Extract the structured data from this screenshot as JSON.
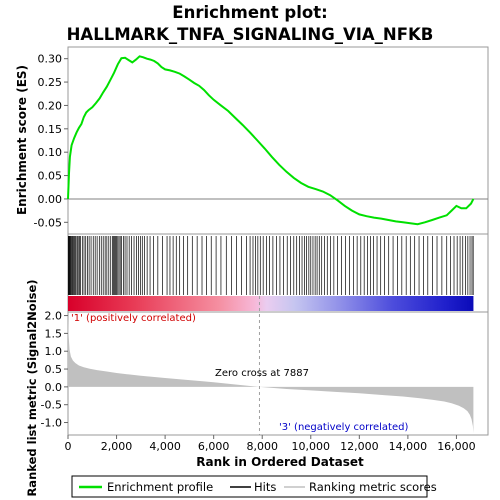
{
  "chart_data": {
    "type": "line",
    "title_lines": [
      "Enrichment plot:",
      "HALLMARK_TNFA_SIGNALING_VIA_NFKB"
    ],
    "xlabel": "Rank in Ordered Dataset",
    "x_ticks": [
      0,
      2000,
      4000,
      6000,
      8000,
      10000,
      12000,
      14000,
      16000
    ],
    "x_tick_labels": [
      "0",
      "2,000",
      "4,000",
      "6,000",
      "8,000",
      "10,000",
      "12,000",
      "14,000",
      "16,000"
    ],
    "xlim": [
      0,
      17300
    ],
    "n_ranks": 16700,
    "es_panel": {
      "ylabel": "Enrichment score (ES)",
      "ylim": [
        -0.075,
        0.325
      ],
      "y_ticks": [
        -0.05,
        0.0,
        0.05,
        0.1,
        0.15,
        0.2,
        0.25,
        0.3
      ],
      "y_tick_labels": [
        "-0.05",
        "0.00",
        "0.05",
        "0.10",
        "0.15",
        "0.20",
        "0.25",
        "0.30"
      ],
      "series": [
        {
          "name": "Enrichment profile",
          "color": "#00e000",
          "x": [
            0,
            40,
            80,
            150,
            250,
            350,
            450,
            550,
            650,
            750,
            850,
            1000,
            1150,
            1300,
            1450,
            1600,
            1750,
            1900,
            2050,
            2200,
            2350,
            2500,
            2650,
            2800,
            2950,
            3100,
            3250,
            3400,
            3550,
            3700,
            3850,
            4000,
            4200,
            4400,
            4600,
            4800,
            5000,
            5200,
            5400,
            5600,
            5800,
            6000,
            6300,
            6600,
            6900,
            7200,
            7500,
            7800,
            8100,
            8400,
            8700,
            9000,
            9300,
            9600,
            9900,
            10200,
            10500,
            10800,
            11100,
            11400,
            11700,
            12000,
            12300,
            12600,
            12900,
            13200,
            13500,
            13800,
            14100,
            14400,
            14700,
            15000,
            15300,
            15600,
            15800,
            16000,
            16200,
            16400,
            16600,
            16700
          ],
          "y": [
            0.0,
            0.055,
            0.09,
            0.115,
            0.13,
            0.142,
            0.152,
            0.16,
            0.175,
            0.185,
            0.19,
            0.196,
            0.205,
            0.215,
            0.228,
            0.24,
            0.255,
            0.27,
            0.288,
            0.301,
            0.302,
            0.297,
            0.292,
            0.298,
            0.305,
            0.303,
            0.3,
            0.298,
            0.295,
            0.29,
            0.282,
            0.277,
            0.275,
            0.272,
            0.268,
            0.262,
            0.255,
            0.248,
            0.242,
            0.233,
            0.222,
            0.212,
            0.2,
            0.188,
            0.173,
            0.158,
            0.142,
            0.125,
            0.108,
            0.09,
            0.073,
            0.058,
            0.045,
            0.034,
            0.026,
            0.021,
            0.016,
            0.008,
            -0.003,
            -0.015,
            -0.025,
            -0.033,
            -0.037,
            -0.04,
            -0.042,
            -0.045,
            -0.048,
            -0.05,
            -0.052,
            -0.054,
            -0.05,
            -0.045,
            -0.04,
            -0.035,
            -0.025,
            -0.015,
            -0.02,
            -0.02,
            -0.01,
            0.0
          ]
        }
      ]
    },
    "hits_panel": {
      "name": "Hits",
      "color": "#000000",
      "hit_positions": [
        18,
        35,
        55,
        80,
        110,
        140,
        175,
        210,
        250,
        290,
        330,
        380,
        420,
        470,
        520,
        590,
        660,
        730,
        800,
        870,
        950,
        1040,
        1120,
        1200,
        1290,
        1370,
        1450,
        1530,
        1600,
        1680,
        1760,
        1830,
        1880,
        1920,
        1960,
        2000,
        2050,
        2100,
        2150,
        2210,
        2280,
        2350,
        2430,
        2520,
        2620,
        2720,
        2820,
        2900,
        2980,
        3060,
        3150,
        3260,
        3380,
        3520,
        3700,
        3890,
        4080,
        4200,
        4330,
        4460,
        4600,
        4760,
        4930,
        5120,
        5320,
        5520,
        5710,
        5900,
        6100,
        6300,
        6520,
        6730,
        6940,
        7150,
        7350,
        7500,
        7620,
        7720,
        7820,
        7920,
        8040,
        8170,
        8300,
        8440,
        8590,
        8730,
        8880,
        9030,
        9170,
        9300,
        9420,
        9530,
        9640,
        9740,
        9830,
        9920,
        10000,
        10090,
        10180,
        10260,
        10350,
        10450,
        10560,
        10680,
        10810,
        10950,
        11100,
        11260,
        11430,
        11600,
        11760,
        11910,
        12060,
        12200,
        12330,
        12460,
        12590,
        12730,
        12880,
        13040,
        13210,
        13390,
        13570,
        13750,
        13930,
        14100,
        14280,
        14460,
        14640,
        14820,
        15010,
        15200,
        15400,
        15600,
        15760,
        15900,
        16030,
        16150,
        16260,
        16370,
        16470,
        16560,
        16640,
        16690
      ]
    },
    "rank_bar": {
      "stops": [
        {
          "frac": 0.0,
          "color": "#d8002a"
        },
        {
          "frac": 0.16,
          "color": "#e83a55"
        },
        {
          "frac": 0.37,
          "color": "#f58ea0"
        },
        {
          "frac": 0.46,
          "color": "#f6b8d8"
        },
        {
          "frac": 0.49,
          "color": "#eacdf0"
        },
        {
          "frac": 0.56,
          "color": "#c5c5f0"
        },
        {
          "frac": 0.68,
          "color": "#8c8ce8"
        },
        {
          "frac": 0.8,
          "color": "#4d4ddc"
        },
        {
          "frac": 0.93,
          "color": "#2020cc"
        },
        {
          "frac": 1.0,
          "color": "#0a0ab8"
        }
      ],
      "label_pos": "'1' (positively correlated)",
      "label_pos_color": "#d00000",
      "label_neg": "'3' (negatively correlated)",
      "label_neg_color": "#0000c8"
    },
    "metric_panel": {
      "ylabel": "Ranked list metric (Signal2Noise)",
      "ylim": [
        -1.35,
        2.1
      ],
      "y_ticks": [
        -1.0,
        -0.5,
        0.0,
        0.5,
        1.0,
        1.5,
        2.0
      ],
      "y_tick_labels": [
        "-1.0",
        "-0.5",
        "0.0",
        "0.5",
        "1.0",
        "1.5",
        "2.0"
      ],
      "fill_color": "#c0c0c0",
      "series": [
        {
          "name": "Ranking metric scores",
          "x": [
            0,
            20,
            60,
            120,
            200,
            300,
            450,
            650,
            900,
            1200,
            1600,
            2000,
            2500,
            3000,
            3500,
            4000,
            5000,
            6000,
            7000,
            7887,
            9000,
            10000,
            11000,
            12000,
            13000,
            13800,
            14500,
            15000,
            15500,
            15800,
            16100,
            16300,
            16450,
            16550,
            16620,
            16680,
            16700
          ],
          "y": [
            2.0,
            1.5,
            1.05,
            0.85,
            0.74,
            0.67,
            0.6,
            0.55,
            0.51,
            0.47,
            0.43,
            0.39,
            0.35,
            0.31,
            0.28,
            0.25,
            0.19,
            0.13,
            0.06,
            0.0,
            -0.06,
            -0.1,
            -0.14,
            -0.18,
            -0.23,
            -0.27,
            -0.32,
            -0.36,
            -0.41,
            -0.46,
            -0.53,
            -0.6,
            -0.68,
            -0.78,
            -0.9,
            -1.1,
            -1.3
          ]
        }
      ],
      "zero_cross_label": "Zero cross at 7887",
      "zero_cross_rank": 7887
    },
    "legend": {
      "placement": "bottom",
      "items": [
        {
          "label": "Enrichment profile",
          "color": "#00e000"
        },
        {
          "label": "Hits",
          "color": "#000000"
        },
        {
          "label": "Ranking metric scores",
          "color": "#c0c0c0"
        }
      ]
    }
  }
}
